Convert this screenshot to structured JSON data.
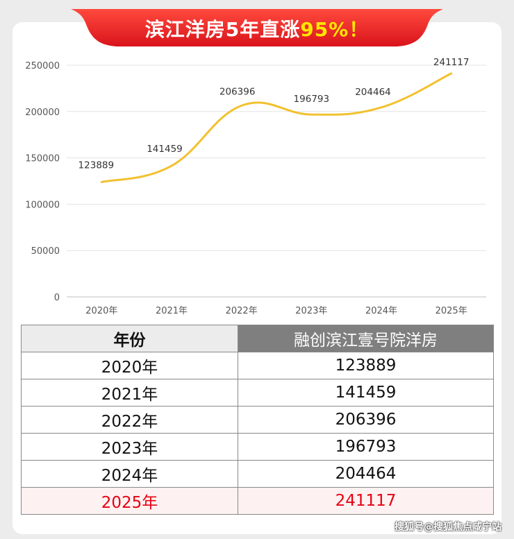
{
  "banner": {
    "title_main": "滨江洋房5年直涨",
    "title_highlight": "95%！",
    "color_main": "#e8262a",
    "color_highlight": "#ffe600"
  },
  "chart_data": {
    "type": "line",
    "categories": [
      "2020年",
      "2021年",
      "2022年",
      "2023年",
      "2024年",
      "2025年"
    ],
    "values": [
      123889,
      141459,
      206396,
      196793,
      204464,
      241117
    ],
    "data_labels": [
      "123889",
      "141459",
      "206396",
      "196793",
      "204464",
      "241117"
    ],
    "yticks": [
      "0",
      "50000",
      "100000",
      "150000",
      "200000",
      "250000"
    ],
    "ylim": [
      0,
      250000
    ],
    "grid": true,
    "smooth": true,
    "line_color": "#f2c12e"
  },
  "table": {
    "headers": [
      "年份",
      "融创滨江壹号院洋房"
    ],
    "rows": [
      [
        "2020年",
        "123889"
      ],
      [
        "2021年",
        "141459"
      ],
      [
        "2022年",
        "206396"
      ],
      [
        "2023年",
        "196793"
      ],
      [
        "2024年",
        "204464"
      ],
      [
        "2025年",
        "241117"
      ]
    ],
    "highlight_color": "#e60012"
  },
  "watermark": "搜狐号@搜狐焦点咸宁站"
}
